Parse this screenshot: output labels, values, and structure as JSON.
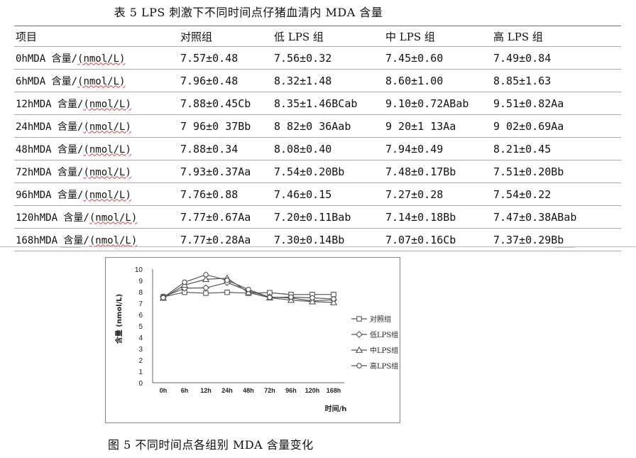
{
  "table": {
    "caption": "表 5 LPS 刺激下不同时间点仔猪血清内 MDA 含量",
    "headers": [
      "项目",
      "对照组",
      "低 LPS 组",
      "中 LPS 组",
      "高 LPS 组"
    ],
    "unit": "(nmol/L)",
    "rows": [
      {
        "prefix": "0hMDA 含量/",
        "c": "7.57±0.48",
        "l": "7.56±0.32",
        "m": "7.45±0.60",
        "h": "7.49±0.84"
      },
      {
        "prefix": "6hMDA 含量/",
        "c": "7.96±0.48",
        "l": "8.32±1.48",
        "m": "8.60±1.00",
        "h": "8.85±1.63"
      },
      {
        "prefix": "12hMDA 含量/",
        "c": "7.88±0.45Cb",
        "l": "8.35±1.46BCab",
        "m": "9.10±0.72ABab",
        "h": "9.51±0.82Aa"
      },
      {
        "prefix": "24hMDA 含量/",
        "c": "7 96±0 37Bb",
        "l": "8 82±0 36Aab",
        "m": "9 20±1 13Aa",
        "h": "9 02±0.69Aa"
      },
      {
        "prefix": "48hMDA 含量/",
        "c": "7.88±0.34",
        "l": "8.08±0.40",
        "m": "7.94±0.49",
        "h": "8.21±0.45"
      },
      {
        "prefix": "72hMDA 含量/",
        "c": "7.93±0.37Aa",
        "l": "7.54±0.20Bb",
        "m": "7.48±0.17Bb",
        "h": "7.51±0.20Bb"
      },
      {
        "prefix": "96hMDA 含量/",
        "c": "7.76±0.88",
        "l": "7.46±0.15",
        "m": "7.27±0.28",
        "h": "7.54±0.22"
      },
      {
        "prefix": "120hMDA 含量/",
        "c": "7.77±0.67Aa",
        "l": "7.20±0.11Bab",
        "m": "7.14±0.18Bb",
        "h": "7.47±0.38ABab"
      },
      {
        "prefix": "168hMDA 含量/",
        "c": "7.77±0.28Aa",
        "l": "7.30±0.14Bb",
        "m": "7.07±0.16Cb",
        "h": "7.37±0.29Bb"
      }
    ]
  },
  "figure_caption": "图 5 不同时间点各组别 MDA 含量变化",
  "chart_data": {
    "type": "line",
    "categories": [
      "0h",
      "6h",
      "12h",
      "24h",
      "48h",
      "72h",
      "96h",
      "120h",
      "168h"
    ],
    "xlabel": "时间/h",
    "ylabel": "含量 (nmol/L)",
    "ylim": [
      0,
      10
    ],
    "yticks": [
      0,
      1,
      2,
      3,
      4,
      5,
      6,
      7,
      8,
      9,
      10
    ],
    "grid": false,
    "legend_position": "right",
    "series": [
      {
        "name": "对照组",
        "marker": "square",
        "values": [
          7.57,
          7.96,
          7.88,
          7.96,
          7.88,
          7.93,
          7.76,
          7.77,
          7.77
        ]
      },
      {
        "name": "低LPS组",
        "marker": "diamond",
        "values": [
          7.56,
          8.32,
          8.35,
          8.82,
          8.08,
          7.54,
          7.46,
          7.2,
          7.3
        ]
      },
      {
        "name": "中LPS组",
        "marker": "triangle",
        "values": [
          7.45,
          8.6,
          9.1,
          9.2,
          7.94,
          7.48,
          7.27,
          7.14,
          7.07
        ]
      },
      {
        "name": "高LPS组",
        "marker": "circle",
        "values": [
          7.49,
          8.85,
          9.51,
          9.02,
          8.21,
          7.51,
          7.54,
          7.47,
          7.37
        ]
      }
    ]
  }
}
